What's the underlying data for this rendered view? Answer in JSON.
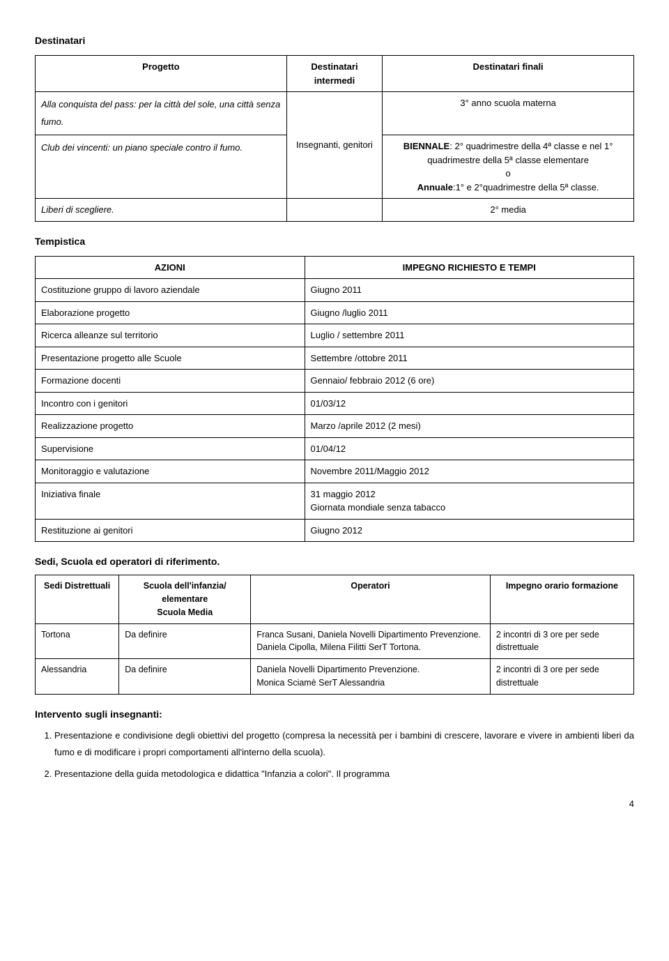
{
  "sections": {
    "destinatari_title": "Destinatari",
    "tempistica_title": "Tempistica",
    "sedi_title": "Sedi, Scuola ed operatori di riferimento.",
    "intervento_title": "Intervento sugli insegnanti:"
  },
  "table1": {
    "headers": {
      "progetto": "Progetto",
      "intermedi": "Destinatari intermedi",
      "finali": "Destinatari finali"
    },
    "rows": {
      "r1_progetto": "Alla conquista del pass: per la città del sole, una città senza fumo.",
      "r1_finali": "3° anno scuola materna",
      "r2_progetto": "Club dei vincenti: un piano speciale contro il fumo.",
      "intermedi_val": "Insegnanti, genitori",
      "r2_finali_1": "BIENNALE",
      "r2_finali_2": ": 2° quadrimestre della 4ª classe e nel 1° quadrimestre della 5ª classe elementare",
      "r2_finali_o": "o",
      "r2_finali_3": "Annuale",
      "r2_finali_4": ":1° e 2°quadrimestre della 5ª classe.",
      "r3_progetto": "Liberi di scegliere.",
      "r3_finali": "2° media"
    }
  },
  "table2": {
    "headers": {
      "azioni": "AZIONI",
      "impegno": "IMPEGNO RICHIESTO E TEMPI"
    },
    "rows": [
      {
        "a": "Costituzione gruppo di lavoro aziendale",
        "b": "Giugno 2011"
      },
      {
        "a": "Elaborazione  progetto",
        "b": "Giugno /luglio 2011"
      },
      {
        "a": "Ricerca alleanze sul territorio",
        "b": "Luglio / settembre 2011"
      },
      {
        "a": "Presentazione progetto alle Scuole",
        "b": "Settembre /ottobre 2011"
      },
      {
        "a": "Formazione docenti",
        "b": "Gennaio/ febbraio  2012 (6 ore)"
      },
      {
        "a": "Incontro con i genitori",
        "b": "01/03/12"
      },
      {
        "a": "Realizzazione progetto",
        "b": "Marzo /aprile 2012 (2 mesi)"
      },
      {
        "a": "Supervisione",
        "b": "01/04/12"
      },
      {
        "a": "Monitoraggio e valutazione",
        "b": "Novembre 2011/Maggio 2012"
      },
      {
        "a": "Iniziativa finale",
        "b": "31 maggio 2012\nGiornata mondiale senza tabacco"
      },
      {
        "a": "Restituzione ai genitori",
        "b": "Giugno 2012"
      }
    ]
  },
  "table3": {
    "headers": {
      "sedi": "Sedi Distrettuali",
      "scuola": "Scuola dell'infanzia/ elementare\nScuola Media",
      "operatori": "Operatori",
      "impegno": "Impegno orario formazione"
    },
    "rows": [
      {
        "sedi": "Tortona",
        "scuola": "Da definire",
        "operatori": "Franca Susani, Daniela Novelli Dipartimento Prevenzione.\nDaniela Cipolla, Milena Filitti  SerT Tortona.",
        "impegno": "2 incontri di 3 ore per sede distrettuale"
      },
      {
        "sedi": "Alessandria",
        "scuola": "Da definire",
        "operatori": "Daniela Novelli Dipartimento Prevenzione.\nMonica Sciamè SerT Alessandria",
        "impegno": "2 incontri di 3 ore per sede distrettuale"
      }
    ]
  },
  "numlist": {
    "item1": "Presentazione e condivisione degli obiettivi del progetto (compresa la necessità per i bambini di crescere, lavorare e vivere in ambienti liberi da fumo e di modificare i propri comportamenti all'interno della scuola).",
    "item2": "Presentazione della guida metodologica e didattica \"Infanzia a colori\". Il programma"
  },
  "pagenum": "4"
}
